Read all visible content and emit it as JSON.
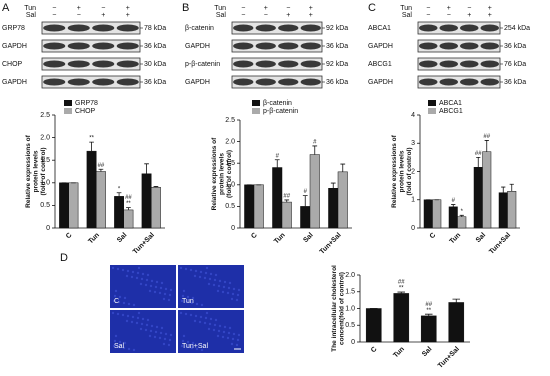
{
  "panel_letters": [
    "A",
    "B",
    "C",
    "D"
  ],
  "blots": [
    {
      "treatments": [
        {
          "name": "Tun",
          "signs": [
            "−",
            "+",
            "−",
            "+"
          ]
        },
        {
          "name": "Sal",
          "signs": [
            "−",
            "−",
            "+",
            "+"
          ]
        }
      ],
      "rows": [
        {
          "protein": "GRP78",
          "size": "78 kDa"
        },
        {
          "protein": "GAPDH",
          "size": "36 kDa"
        },
        {
          "protein": "CHOP",
          "size": "30 kDa"
        },
        {
          "protein": "GAPDH",
          "size": "36 kDa"
        }
      ]
    },
    {
      "treatments": [
        {
          "name": "Tun",
          "signs": [
            "−",
            "+",
            "−",
            "+"
          ]
        },
        {
          "name": "Sal",
          "signs": [
            "−",
            "−",
            "+",
            "+"
          ]
        }
      ],
      "rows": [
        {
          "protein": "β-catenin",
          "size": "92 kDa"
        },
        {
          "protein": "GAPDH",
          "size": "36 kDa"
        },
        {
          "protein": "p-β-catenin",
          "size": "92 kDa"
        },
        {
          "protein": "GAPDH",
          "size": "36 kDa"
        }
      ]
    },
    {
      "treatments": [
        {
          "name": "Tun",
          "signs": [
            "−",
            "+",
            "−",
            "+"
          ]
        },
        {
          "name": "Sal",
          "signs": [
            "−",
            "−",
            "+",
            "+"
          ]
        }
      ],
      "rows": [
        {
          "protein": "ABCA1",
          "size": "254 kDa"
        },
        {
          "protein": "GAPDH",
          "size": "36 kDa"
        },
        {
          "protein": "ABCG1",
          "size": "76 kDa"
        },
        {
          "protein": "GAPDH",
          "size": "36 kDa"
        }
      ]
    }
  ],
  "images": [
    "C",
    "Tun",
    "Sal",
    "Tun+Sal"
  ],
  "chart_data": [
    {
      "type": "bar",
      "y_label": [
        "Relative expressions of",
        "protein levels",
        "(fold of control)"
      ],
      "categories": [
        "C",
        "Tun",
        "Sal",
        "Tun+Sal"
      ],
      "series": [
        {
          "name": "GRP78",
          "color": "#111111",
          "values": [
            1,
            1.7,
            0.7,
            1.2
          ],
          "errors": [
            0,
            0.2,
            0.08,
            0.22
          ],
          "markers": [
            null,
            [
              "**"
            ],
            [
              "*"
            ],
            null
          ]
        },
        {
          "name": "CHOP",
          "color": "#aaaaaa",
          "values": [
            1,
            1.25,
            0.4,
            0.9
          ],
          "errors": [
            0,
            0.05,
            0.05,
            0.02
          ],
          "markers": [
            null,
            [
              "##"
            ],
            [
              "##",
              "**"
            ],
            null
          ]
        }
      ],
      "ylim": [
        0,
        2.5
      ],
      "yticks": [
        0,
        0.5,
        {
          "value": 1,
          "label": "1.0"
        },
        1.5,
        {
          "value": 2,
          "label": "2.0"
        },
        2.5
      ]
    },
    {
      "type": "bar",
      "y_label": [
        "Relative expressions of",
        "protein levels",
        "(fold of control)"
      ],
      "categories": [
        "C",
        "Tun",
        "Sal",
        "Tun+Sal"
      ],
      "series": [
        {
          "name": "β-catenin",
          "color": "#111111",
          "values": [
            1,
            1.4,
            0.5,
            0.92
          ],
          "errors": [
            0,
            0.18,
            0.25,
            0.12
          ],
          "markers": [
            null,
            [
              "#"
            ],
            [
              "#"
            ],
            null
          ]
        },
        {
          "name": "p-β-catenin",
          "color": "#aaaaaa",
          "values": [
            1,
            0.6,
            1.7,
            1.3
          ],
          "errors": [
            0,
            0.05,
            0.2,
            0.18
          ],
          "markers": [
            null,
            [
              "##"
            ],
            [
              "#"
            ],
            null
          ]
        }
      ],
      "ylim": [
        0,
        2.5
      ],
      "yticks": [
        0,
        0.5,
        {
          "value": 1,
          "label": "1.0"
        },
        1.5,
        {
          "value": 2,
          "label": "2.0"
        },
        2.5
      ]
    },
    {
      "type": "bar",
      "y_label": [
        "Relative expressions of",
        "protein levels",
        "(fold of control)"
      ],
      "categories": [
        "C",
        "Tun",
        "Sal",
        "Tun+Sal"
      ],
      "series": [
        {
          "name": "ABCA1",
          "color": "#111111",
          "values": [
            1,
            0.75,
            2.15,
            1.25
          ],
          "errors": [
            0,
            0.08,
            0.35,
            0.2
          ],
          "markers": [
            null,
            [
              "#"
            ],
            [
              "##"
            ],
            null
          ]
        },
        {
          "name": "ABCG1",
          "color": "#aaaaaa",
          "values": [
            1,
            0.4,
            2.7,
            1.3
          ],
          "errors": [
            0,
            0.05,
            0.4,
            0.25
          ],
          "markers": [
            null,
            [
              "*"
            ],
            [
              "##"
            ],
            null
          ]
        }
      ],
      "ylim": [
        0,
        4
      ],
      "yticks": [
        0,
        1,
        2,
        3,
        4
      ]
    },
    {
      "type": "bar",
      "y_label": [
        "The intracellular cholesterol",
        "concent(fold of control)"
      ],
      "categories": [
        "C",
        "Tun",
        "Sal",
        "Tun+Sal"
      ],
      "color": "#111111",
      "values": [
        1,
        1.45,
        0.78,
        1.18
      ],
      "errors": [
        0,
        0.04,
        0.05,
        0.1
      ],
      "markers": [
        null,
        [
          "##",
          "**"
        ],
        [
          "##",
          "**"
        ],
        null
      ],
      "ylim": [
        0,
        2
      ],
      "yticks": [
        0,
        0.5,
        {
          "value": 1,
          "label": "1.0"
        },
        1.5,
        {
          "value": 2,
          "label": "2.0"
        }
      ]
    }
  ]
}
